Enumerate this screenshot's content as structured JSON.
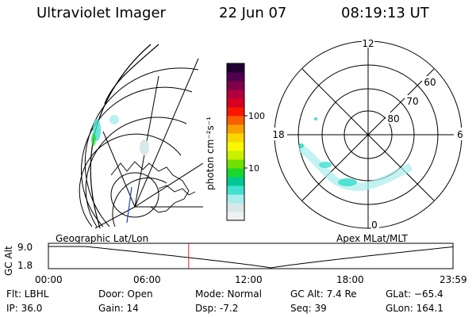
{
  "header": {
    "instrument": "Ultraviolet Imager",
    "date": "22 Jun 07",
    "time": "08:19:13 UT"
  },
  "colorbar": {
    "unit_label": "photon cm⁻²s⁻¹",
    "ticks": [
      {
        "label": "100",
        "value": 100
      },
      {
        "label": "10",
        "value": 10
      }
    ],
    "colors": [
      "#f0f0f0",
      "#d8e8e8",
      "#a8ecec",
      "#40e0d0",
      "#00c890",
      "#18d830",
      "#70e000",
      "#c8f000",
      "#f8f800",
      "#f8d800",
      "#f8a000",
      "#f86000",
      "#f81800",
      "#d80020",
      "#b00040",
      "#80004a",
      "#500050",
      "#200030"
    ]
  },
  "polar": {
    "mlt_labels": {
      "top": "12",
      "left": "18",
      "right": "6",
      "bottom": "0"
    },
    "lat_labels": [
      "60",
      "70",
      "80"
    ]
  },
  "map_labels": {
    "left": "Geographic Lat/Lon",
    "right": "Apex MLat/MLT"
  },
  "timeline": {
    "ylabel": "GC Alt",
    "yticks": [
      "9.0",
      "1.8"
    ],
    "xticks": [
      "00:00",
      "06:00",
      "12:00",
      "18:00",
      "23:59"
    ],
    "current_marker_hours": 8.32,
    "marker_color": "#e02020"
  },
  "info": {
    "filter": "Flt: LBHL",
    "ip": "IP: 36.0",
    "door": "Door: Open",
    "gain": "Gain: 14",
    "mode": "Mode: Normal",
    "dsp": "Dsp:    -7.2",
    "gc_alt": "GC Alt: 7.4 Re",
    "seq": "Seq: 39",
    "glat": "GLat: −65.4",
    "glon": "GLon: 164.1"
  }
}
